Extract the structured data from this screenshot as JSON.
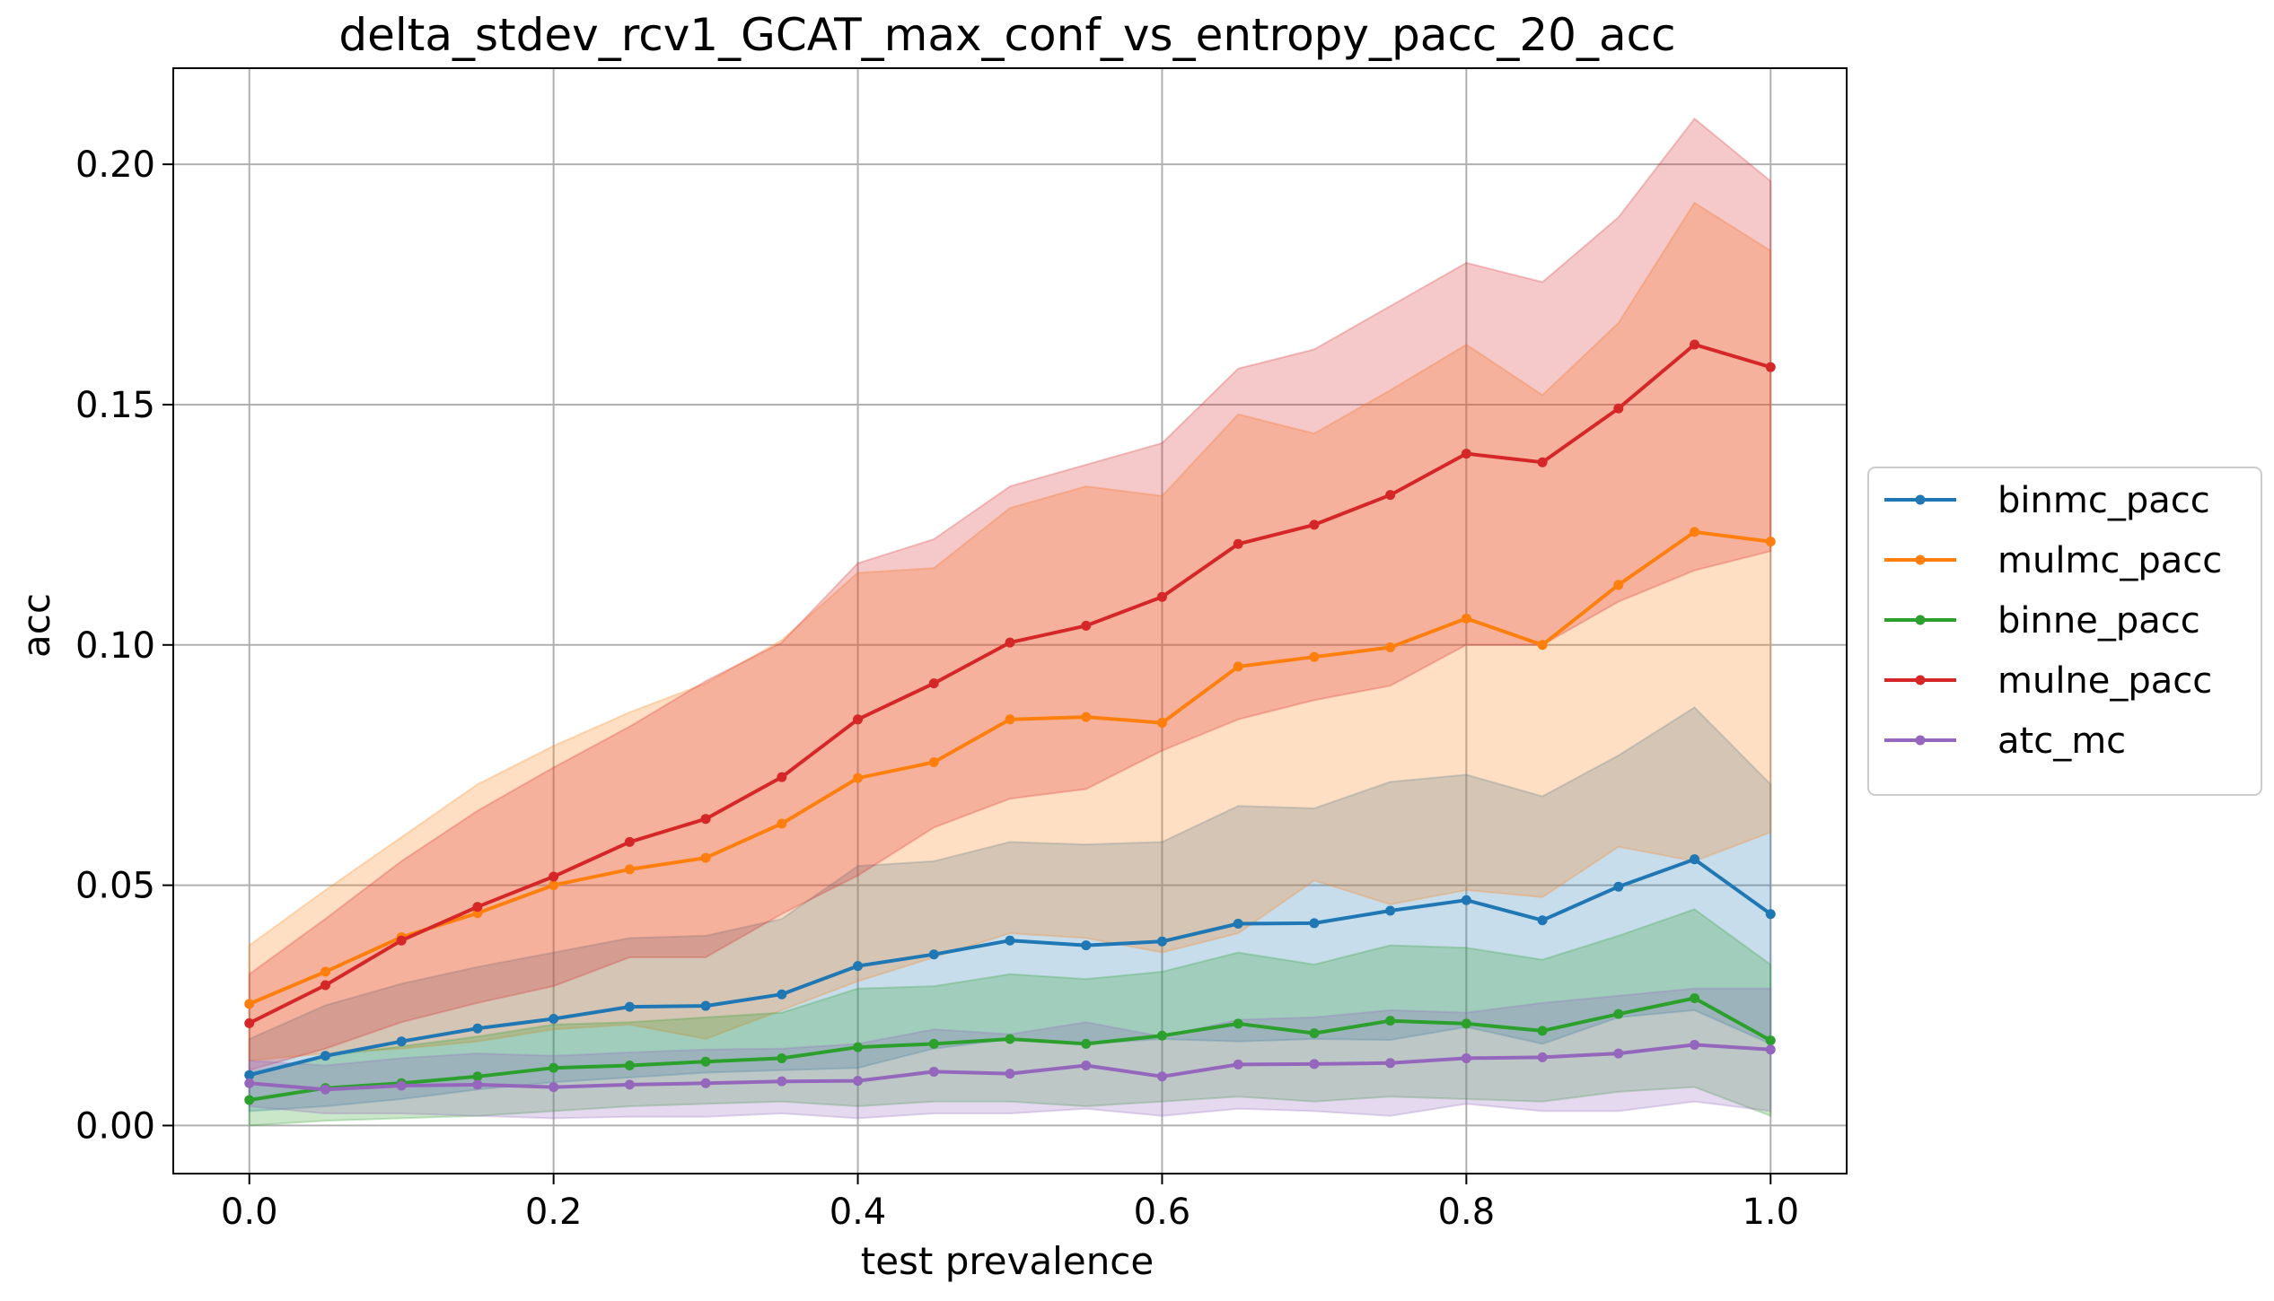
{
  "chart_data": {
    "type": "line",
    "title": "delta_stdev_rcv1_GCAT_max_conf_vs_entropy_pacc_20_acc",
    "xlabel": "test prevalence",
    "ylabel": "acc",
    "xlim": [
      -0.05,
      1.05
    ],
    "ylim": [
      -0.01,
      0.22
    ],
    "xticks": [
      0.0,
      0.2,
      0.4,
      0.6,
      0.8,
      1.0
    ],
    "xtick_labels": [
      "0.0",
      "0.2",
      "0.4",
      "0.6",
      "0.8",
      "1.0"
    ],
    "yticks": [
      0.0,
      0.05,
      0.1,
      0.15,
      0.2
    ],
    "ytick_labels": [
      "0.00",
      "0.05",
      "0.10",
      "0.15",
      "0.20"
    ],
    "grid": true,
    "legend_position": "right-outside",
    "x": [
      0.0,
      0.05,
      0.1,
      0.15,
      0.2,
      0.25,
      0.3,
      0.35,
      0.4,
      0.45,
      0.5,
      0.55,
      0.6,
      0.65,
      0.7,
      0.75,
      0.8,
      0.85,
      0.9,
      0.95,
      1.0
    ],
    "series": [
      {
        "name": "binmc_pacc",
        "color": "#1f77b4",
        "values": [
          0.0105,
          0.0145,
          0.0175,
          0.0202,
          0.0222,
          0.0247,
          0.0249,
          0.0273,
          0.0332,
          0.0356,
          0.0385,
          0.0375,
          0.0383,
          0.042,
          0.0421,
          0.0447,
          0.0469,
          0.0427,
          0.0497,
          0.0554,
          0.044
        ],
        "lower": [
          0.003,
          0.004,
          0.0055,
          0.0075,
          0.009,
          0.01,
          0.011,
          0.0115,
          0.012,
          0.016,
          0.018,
          0.017,
          0.018,
          0.0175,
          0.018,
          0.0178,
          0.0205,
          0.017,
          0.0225,
          0.024,
          0.017
        ],
        "upper": [
          0.018,
          0.025,
          0.0295,
          0.033,
          0.036,
          0.039,
          0.0395,
          0.043,
          0.054,
          0.055,
          0.059,
          0.0585,
          0.059,
          0.0665,
          0.066,
          0.0715,
          0.073,
          0.0685,
          0.077,
          0.087,
          0.071
        ]
      },
      {
        "name": "mulmc_pacc",
        "color": "#ff7f0e",
        "values": [
          0.0253,
          0.032,
          0.0392,
          0.0442,
          0.05,
          0.0533,
          0.0557,
          0.0628,
          0.0723,
          0.0756,
          0.0845,
          0.085,
          0.0838,
          0.0955,
          0.0975,
          0.0995,
          0.1055,
          0.1,
          0.1125,
          0.1235,
          0.1215
        ],
        "lower": [
          0.0135,
          0.015,
          0.016,
          0.0175,
          0.02,
          0.021,
          0.018,
          0.024,
          0.03,
          0.035,
          0.04,
          0.039,
          0.036,
          0.04,
          0.051,
          0.046,
          0.049,
          0.0475,
          0.058,
          0.055,
          0.061
        ],
        "upper": [
          0.0375,
          0.049,
          0.06,
          0.071,
          0.079,
          0.086,
          0.092,
          0.101,
          0.115,
          0.116,
          0.1285,
          0.133,
          0.131,
          0.148,
          0.144,
          0.153,
          0.1625,
          0.152,
          0.167,
          0.192,
          0.182
        ]
      },
      {
        "name": "binne_pacc",
        "color": "#2ca02c",
        "values": [
          0.0053,
          0.0078,
          0.0088,
          0.0102,
          0.012,
          0.0125,
          0.0133,
          0.014,
          0.0163,
          0.017,
          0.018,
          0.017,
          0.0187,
          0.0212,
          0.0192,
          0.0218,
          0.0212,
          0.0197,
          0.0232,
          0.0265,
          0.0177
        ],
        "lower": [
          0.0,
          0.001,
          0.0015,
          0.002,
          0.003,
          0.004,
          0.0045,
          0.005,
          0.004,
          0.005,
          0.005,
          0.004,
          0.005,
          0.006,
          0.005,
          0.006,
          0.0055,
          0.005,
          0.007,
          0.008,
          0.002
        ],
        "upper": [
          0.011,
          0.0145,
          0.0165,
          0.0185,
          0.021,
          0.0215,
          0.0225,
          0.0235,
          0.0285,
          0.029,
          0.0315,
          0.0305,
          0.032,
          0.036,
          0.0335,
          0.0375,
          0.037,
          0.0345,
          0.0395,
          0.045,
          0.0335
        ]
      },
      {
        "name": "mulne_pacc",
        "color": "#d62728",
        "values": [
          0.0213,
          0.0292,
          0.0385,
          0.0455,
          0.0518,
          0.059,
          0.0638,
          0.0725,
          0.0845,
          0.092,
          0.1005,
          0.104,
          0.11,
          0.121,
          0.125,
          0.1312,
          0.1398,
          0.138,
          0.1492,
          0.1625,
          0.1578
        ],
        "lower": [
          0.0115,
          0.016,
          0.0215,
          0.0255,
          0.029,
          0.035,
          0.035,
          0.044,
          0.052,
          0.062,
          0.068,
          0.07,
          0.078,
          0.0845,
          0.0885,
          0.0915,
          0.1,
          0.1,
          0.109,
          0.1155,
          0.1195
        ],
        "upper": [
          0.0315,
          0.043,
          0.055,
          0.0655,
          0.0745,
          0.083,
          0.0925,
          0.1005,
          0.117,
          0.122,
          0.133,
          0.1375,
          0.142,
          0.1575,
          0.1615,
          0.1705,
          0.1795,
          0.1755,
          0.189,
          0.2095,
          0.1965
        ]
      },
      {
        "name": "atc_mc",
        "color": "#9467bd",
        "values": [
          0.0088,
          0.0075,
          0.0083,
          0.0085,
          0.008,
          0.0085,
          0.0088,
          0.0092,
          0.0093,
          0.0112,
          0.0108,
          0.0125,
          0.0102,
          0.0127,
          0.0128,
          0.013,
          0.014,
          0.0142,
          0.015,
          0.0168,
          0.0158
        ],
        "lower": [
          0.004,
          0.0025,
          0.0025,
          0.002,
          0.0015,
          0.0018,
          0.0018,
          0.0025,
          0.0015,
          0.0025,
          0.0025,
          0.0035,
          0.002,
          0.0035,
          0.003,
          0.002,
          0.0045,
          0.003,
          0.003,
          0.005,
          0.003
        ],
        "upper": [
          0.0135,
          0.0125,
          0.014,
          0.015,
          0.0145,
          0.0152,
          0.0158,
          0.016,
          0.017,
          0.02,
          0.019,
          0.0215,
          0.0185,
          0.022,
          0.0225,
          0.024,
          0.0235,
          0.0255,
          0.027,
          0.0285,
          0.0285
        ]
      }
    ]
  }
}
